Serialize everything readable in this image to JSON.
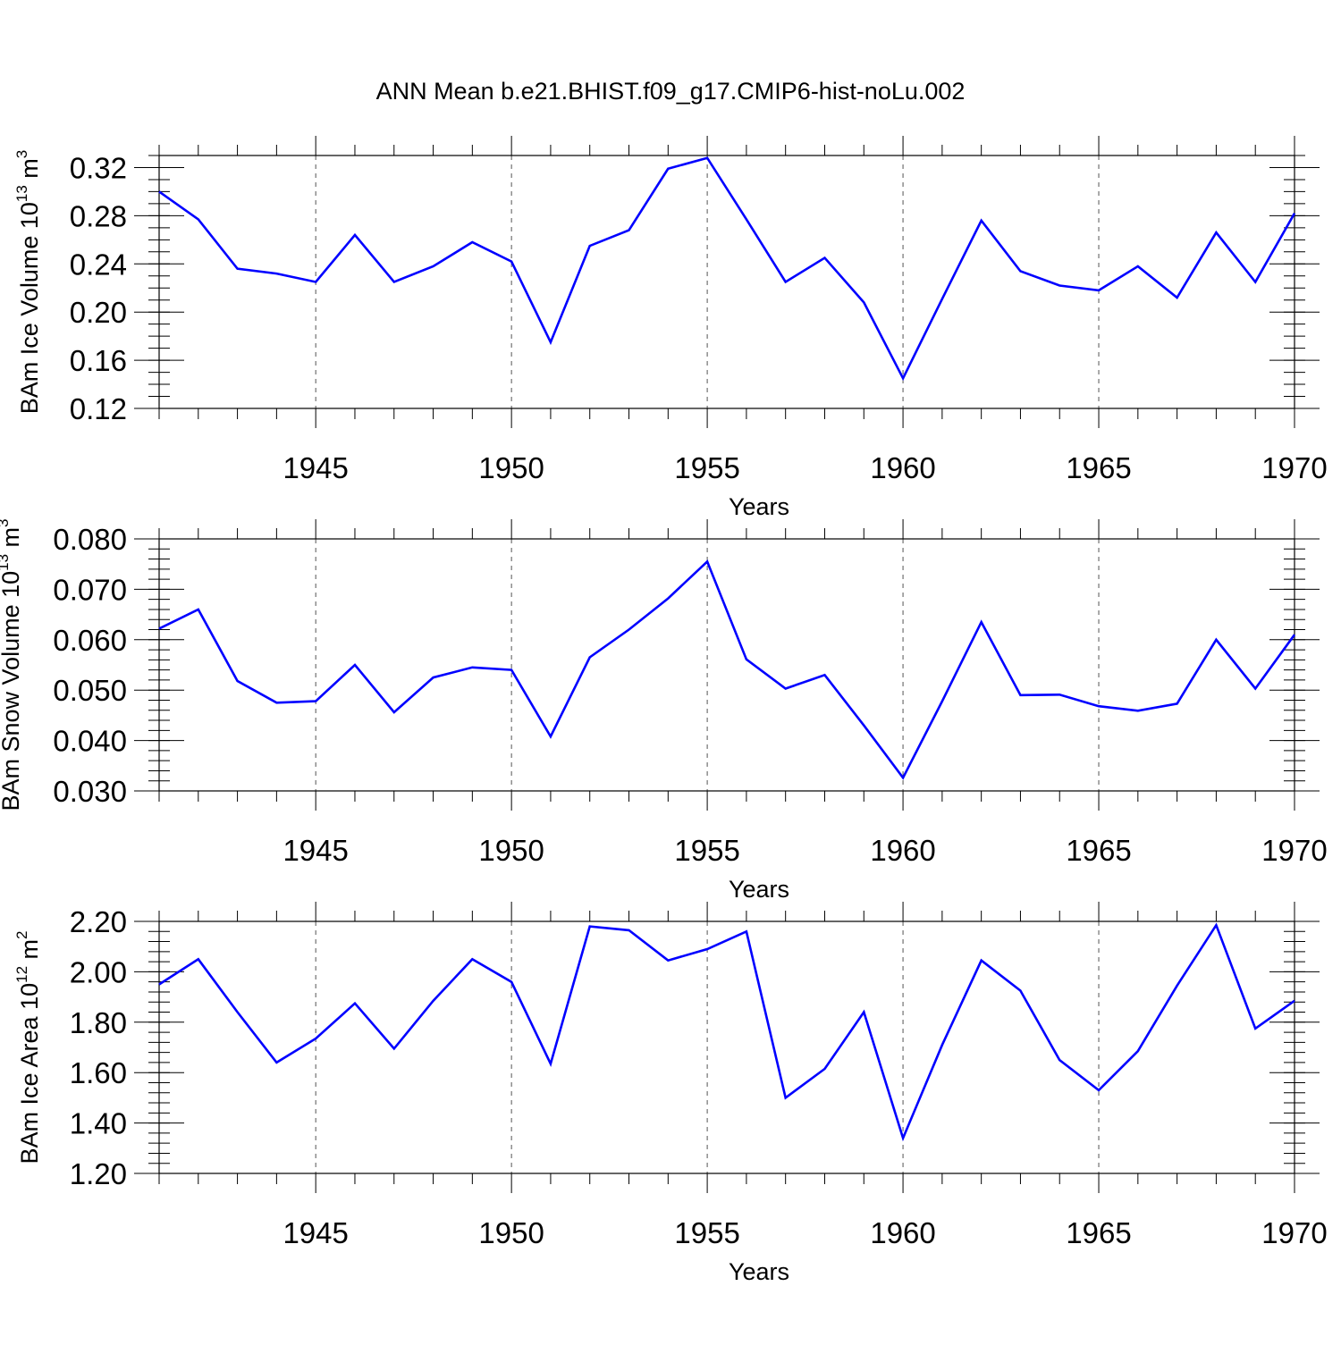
{
  "page_title": "ANN Mean b.e21.BHIST.f09_g17.CMIP6-hist-noLu.002",
  "colors": {
    "line": "#0000ff",
    "axis": "#000000",
    "grid": "#555555"
  },
  "chart_data": [
    {
      "type": "line",
      "series_name": "BAm Ice Volume",
      "ylabel_text": "BAm Ice Volume 10",
      "ylabel_exp": "13",
      "ylabel_unit": " m",
      "ylabel_unit_exp": "3",
      "xlabel": "Years",
      "xlim": [
        1941,
        1970
      ],
      "ylim": [
        0.12,
        0.33
      ],
      "x_ticks": [
        1945,
        1950,
        1955,
        1960,
        1965,
        1970
      ],
      "x_tick_labels": [
        "1945",
        "1950",
        "1955",
        "1960",
        "1965",
        "1970"
      ],
      "y_ticks": [
        0.12,
        0.16,
        0.2,
        0.24,
        0.28,
        0.32
      ],
      "y_tick_labels": [
        "0.12",
        "0.16",
        "0.20",
        "0.24",
        "0.28",
        "0.32"
      ],
      "y_minor_step": 0.01,
      "vgrid": [
        1945,
        1950,
        1955,
        1960,
        1965
      ],
      "x": [
        1941,
        1942,
        1943,
        1944,
        1945,
        1946,
        1947,
        1948,
        1949,
        1950,
        1951,
        1952,
        1953,
        1954,
        1955,
        1956,
        1957,
        1958,
        1959,
        1960,
        1961,
        1962,
        1963,
        1964,
        1965,
        1966,
        1967,
        1968,
        1969,
        1970
      ],
      "values": [
        0.3,
        0.277,
        0.236,
        0.232,
        0.225,
        0.264,
        0.225,
        0.238,
        0.258,
        0.242,
        0.175,
        0.255,
        0.268,
        0.319,
        0.328,
        0.277,
        0.225,
        0.245,
        0.208,
        0.145,
        0.211,
        0.276,
        0.234,
        0.222,
        0.218,
        0.238,
        0.212,
        0.266,
        0.225,
        0.282
      ]
    },
    {
      "type": "line",
      "series_name": "BAm Snow Volume",
      "ylabel_text": "BAm Snow Volume 10",
      "ylabel_exp": "13",
      "ylabel_unit": " m",
      "ylabel_unit_exp": "3",
      "xlabel": "Years",
      "xlim": [
        1941,
        1970
      ],
      "ylim": [
        0.03,
        0.08
      ],
      "x_ticks": [
        1945,
        1950,
        1955,
        1960,
        1965,
        1970
      ],
      "x_tick_labels": [
        "1945",
        "1950",
        "1955",
        "1960",
        "1965",
        "1970"
      ],
      "y_ticks": [
        0.03,
        0.04,
        0.05,
        0.06,
        0.07,
        0.08
      ],
      "y_tick_labels": [
        "0.030",
        "0.040",
        "0.050",
        "0.060",
        "0.070",
        "0.080"
      ],
      "y_minor_step": 0.002,
      "vgrid": [
        1945,
        1950,
        1955,
        1960,
        1965
      ],
      "x": [
        1941,
        1942,
        1943,
        1944,
        1945,
        1946,
        1947,
        1948,
        1949,
        1950,
        1951,
        1952,
        1953,
        1954,
        1955,
        1956,
        1957,
        1958,
        1959,
        1960,
        1961,
        1962,
        1963,
        1964,
        1965,
        1966,
        1967,
        1968,
        1969,
        1970
      ],
      "values": [
        0.0622,
        0.066,
        0.0518,
        0.0475,
        0.0478,
        0.055,
        0.0456,
        0.0525,
        0.0545,
        0.054,
        0.0408,
        0.0565,
        0.062,
        0.0682,
        0.0755,
        0.0561,
        0.0503,
        0.053,
        0.043,
        0.0326,
        0.0478,
        0.0635,
        0.049,
        0.0491,
        0.0468,
        0.0459,
        0.0473,
        0.06,
        0.0503,
        0.061
      ]
    },
    {
      "type": "line",
      "series_name": "BAm Ice Area",
      "ylabel_text": "BAm Ice Area 10",
      "ylabel_exp": "12",
      "ylabel_unit": " m",
      "ylabel_unit_exp": "2",
      "xlabel": "Years",
      "xlim": [
        1941,
        1970
      ],
      "ylim": [
        1.2,
        2.2
      ],
      "x_ticks": [
        1945,
        1950,
        1955,
        1960,
        1965,
        1970
      ],
      "x_tick_labels": [
        "1945",
        "1950",
        "1955",
        "1960",
        "1965",
        "1970"
      ],
      "y_ticks": [
        1.2,
        1.4,
        1.6,
        1.8,
        2.0,
        2.2
      ],
      "y_tick_labels": [
        "1.20",
        "1.40",
        "1.60",
        "1.80",
        "2.00",
        "2.20"
      ],
      "y_minor_step": 0.04,
      "vgrid": [
        1945,
        1950,
        1955,
        1960,
        1965
      ],
      "x": [
        1941,
        1942,
        1943,
        1944,
        1945,
        1946,
        1947,
        1948,
        1949,
        1950,
        1951,
        1952,
        1953,
        1954,
        1955,
        1956,
        1957,
        1958,
        1959,
        1960,
        1961,
        1962,
        1963,
        1964,
        1965,
        1966,
        1967,
        1968,
        1969,
        1970
      ],
      "values": [
        1.95,
        2.05,
        1.84,
        1.64,
        1.735,
        1.875,
        1.695,
        1.885,
        2.05,
        1.96,
        1.635,
        2.18,
        2.165,
        2.045,
        2.09,
        2.16,
        1.5,
        1.615,
        1.84,
        1.34,
        1.71,
        2.045,
        1.925,
        1.65,
        1.53,
        1.685,
        1.945,
        2.185,
        1.775,
        1.885
      ]
    }
  ]
}
